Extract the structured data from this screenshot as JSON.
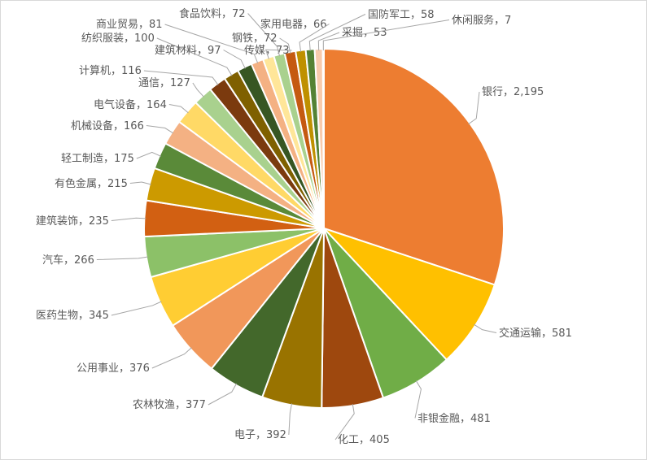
{
  "chart_data": {
    "type": "pie",
    "categories": [
      "银行",
      "交通运输",
      "非银金融",
      "化工",
      "电子",
      "农林牧渔",
      "公用事业",
      "医药生物",
      "汽车",
      "建筑装饰",
      "有色金属",
      "轻工制造",
      "机械设备",
      "电气设备",
      "通信",
      "计算机",
      "纺织服装",
      "建筑材料",
      "商业贸易",
      "传媒",
      "食品饮料",
      "钢铁",
      "家用电器",
      "国防军工",
      "采掘",
      "休闲服务"
    ],
    "values": [
      2195,
      581,
      481,
      405,
      392,
      377,
      376,
      345,
      266,
      235,
      215,
      175,
      166,
      164,
      127,
      116,
      100,
      97,
      81,
      73,
      72,
      72,
      66,
      58,
      53,
      7
    ],
    "value_labels": [
      "2,195",
      "581",
      "481",
      "405",
      "392",
      "377",
      "376",
      "345",
      "266",
      "235",
      "215",
      "175",
      "166",
      "164",
      "127",
      "116",
      "100",
      "97",
      "81",
      "73",
      "72",
      "72",
      "66",
      "58",
      "53",
      "7"
    ],
    "label_separator": "，",
    "colors": [
      "#ED7D31",
      "#FFC000",
      "#70AD47",
      "#9E480E",
      "#997300",
      "#43682B",
      "#F1975A",
      "#FFCD33",
      "#8CC168",
      "#D26012",
      "#CC9A00",
      "#5A8A39",
      "#F4B183",
      "#FFD966",
      "#A9D18E",
      "#7B3A0E",
      "#7F6000",
      "#375623",
      "#F4B183",
      "#FFE699",
      "#A9D18E",
      "#C55A11",
      "#BF9000",
      "#548235",
      "#F8CBAD",
      "#FFE699"
    ]
  }
}
